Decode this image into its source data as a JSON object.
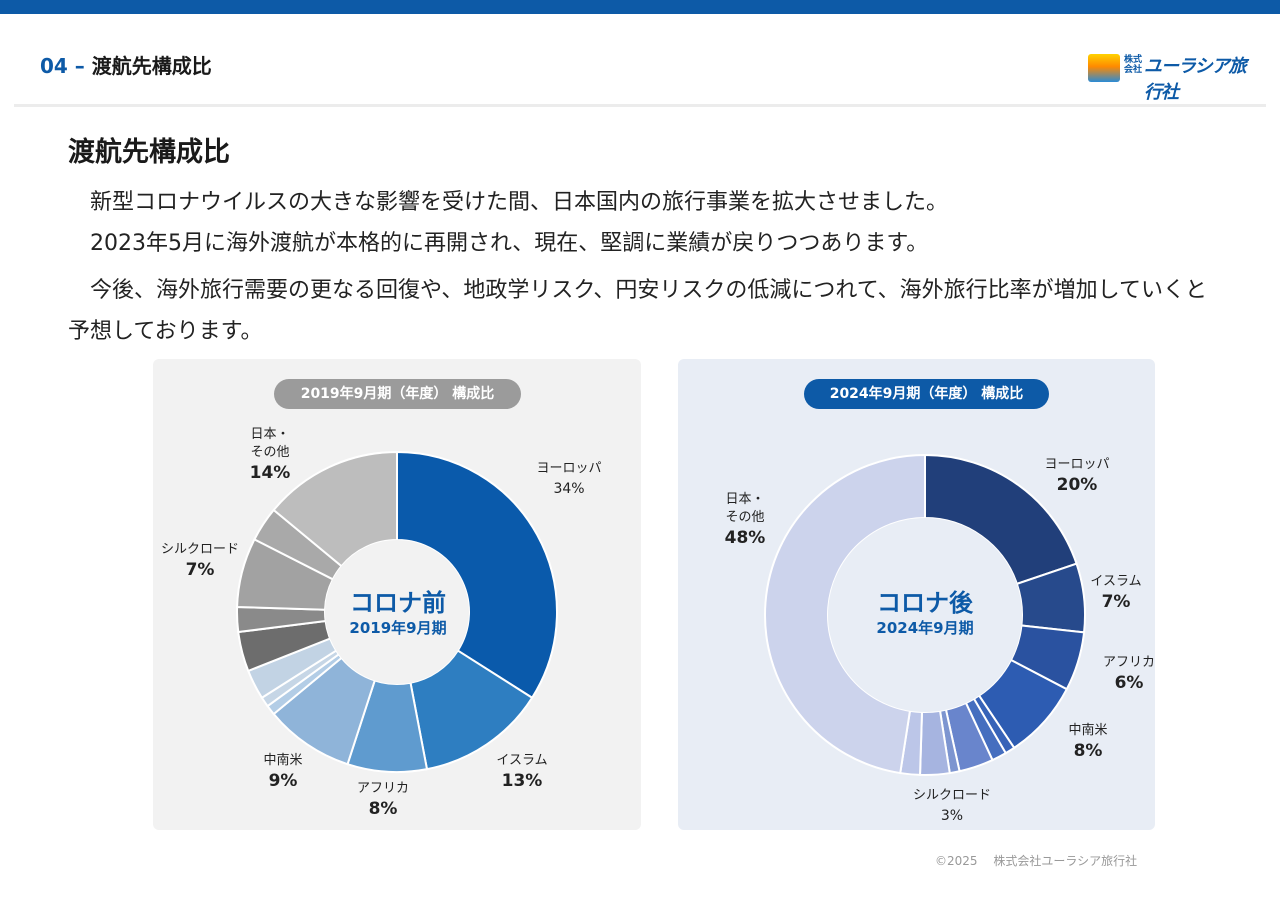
{
  "header": {
    "number": "04",
    "dash": " – ",
    "title": "渡航先構成比"
  },
  "logo": {
    "small_top": "株式",
    "small_bottom": "会社",
    "name": "ユーラシア旅行社"
  },
  "section_title": "渡航先構成比",
  "paragraphs": [
    "　新型コロナウイルスの大きな影響を受けた間、日本国内の旅行事業を拡大させました。",
    "　2023年5月に海外渡航が本格的に再開され、現在、堅調に業績が戻りつつあります。",
    "　今後、海外旅行需要の更なる回復や、地政学リスク、円安リスクの低減につれて、海外旅行比率が増加していくと予想しております。"
  ],
  "chart_data": [
    {
      "type": "pie",
      "title": "2019年9月期（年度） 構成比",
      "center_title": "コロナ前",
      "center_subtitle": "2019年9月期",
      "slices": [
        {
          "label": "ヨーロッパ",
          "value": 34,
          "display": "34%",
          "color": "#0a5aab"
        },
        {
          "label": "イスラム",
          "value": 13,
          "display": "13%",
          "color": "#2e7ec1"
        },
        {
          "label": "アフリカ",
          "value": 8,
          "display": "8%",
          "color": "#5f9bcf"
        },
        {
          "label": "中南米",
          "value": 9,
          "display": "9%",
          "color": "#8fb4d9"
        },
        {
          "label": "",
          "value": 1,
          "display": "",
          "color": "#b3cde6"
        },
        {
          "label": "",
          "value": 1,
          "display": "",
          "color": "#c6d6e6"
        },
        {
          "label": "",
          "value": 3,
          "display": "",
          "color": "#c2d3e4"
        },
        {
          "label": "",
          "value": 4,
          "display": "",
          "color": "#6d6d6d"
        },
        {
          "label": "",
          "value": 2.5,
          "display": "",
          "color": "#8a8a8a"
        },
        {
          "label": "シルクロード",
          "value": 7,
          "display": "7%",
          "color": "#a2a2a2"
        },
        {
          "label": "",
          "value": 3.5,
          "display": "",
          "color": "#a9a9a9"
        },
        {
          "label": "日本・その他",
          "value": 14,
          "display": "14%",
          "color": "#bdbdbd"
        }
      ]
    },
    {
      "type": "pie",
      "title": "2024年9月期（年度） 構成比",
      "center_title": "コロナ後",
      "center_subtitle": "2024年9月期",
      "slices": [
        {
          "label": "ヨーロッパ",
          "value": 20,
          "display": "20%",
          "color": "#213f7a"
        },
        {
          "label": "イスラム",
          "value": 7,
          "display": "7%",
          "color": "#274a8c"
        },
        {
          "label": "アフリカ",
          "value": 6,
          "display": "6%",
          "color": "#2a52a0"
        },
        {
          "label": "中南米",
          "value": 8,
          "display": "8%",
          "color": "#2d5cb2"
        },
        {
          "label": "",
          "value": 1,
          "display": "",
          "color": "#3763b8"
        },
        {
          "label": "",
          "value": 1.5,
          "display": "",
          "color": "#456ebf"
        },
        {
          "label": "",
          "value": 3.5,
          "display": "",
          "color": "#6985cc"
        },
        {
          "label": "",
          "value": 1,
          "display": "",
          "color": "#7d95d0"
        },
        {
          "label": "シルクロード",
          "value": 3,
          "display": "3%",
          "color": "#a6b4e0"
        },
        {
          "label": "",
          "value": 2,
          "display": "",
          "color": "#bcc6e8"
        },
        {
          "label": "日本・その他",
          "value": 48,
          "display": "48%",
          "color": "#ccd3ec"
        }
      ]
    }
  ],
  "labels_left": {
    "europe": {
      "name": "ヨーロッパ",
      "pct": "34%"
    },
    "islam": {
      "name": "イスラム",
      "pct": "13%"
    },
    "africa": {
      "name": "アフリカ",
      "pct": "8%"
    },
    "latam": {
      "name": "中南米",
      "pct": "9%"
    },
    "silk": {
      "name": "シルクロード",
      "pct": "7%"
    },
    "japan": {
      "name1": "日本・",
      "name2": "その他",
      "pct": "14%"
    }
  },
  "labels_right": {
    "europe": {
      "name": "ヨーロッパ",
      "pct": "20%"
    },
    "islam": {
      "name": "イスラム",
      "pct": "7%"
    },
    "africa": {
      "name": "アフリカ",
      "pct": "6%"
    },
    "latam": {
      "name": "中南米",
      "pct": "8%"
    },
    "silk": {
      "name": "シルクロード",
      "pct": "3%"
    },
    "japan": {
      "name1": "日本・",
      "name2": "その他",
      "pct": "48%"
    }
  },
  "colors": {
    "brand": "#0d5aa7",
    "pill_left": "#9b9b9b",
    "pill_right": "#0d5aa7"
  },
  "copyright": "©2025　 株式会社ユーラシア旅行社"
}
